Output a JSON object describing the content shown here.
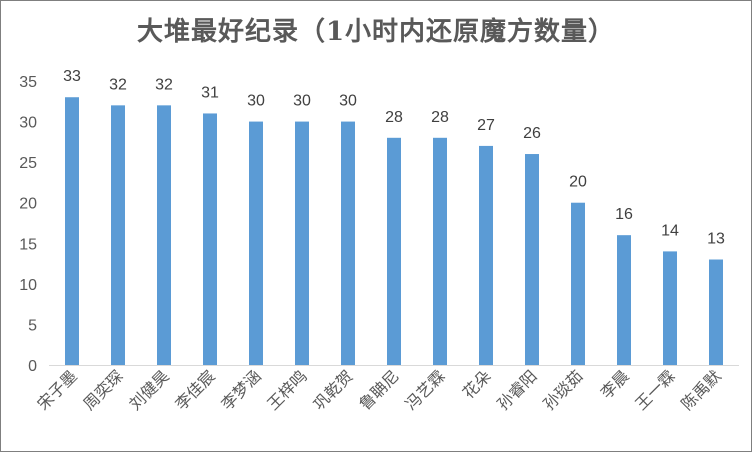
{
  "chart_data": {
    "type": "bar",
    "title": "大堆最好纪录（1小时内还原魔方数量）",
    "categories": [
      "宋子墨",
      "周奕琛",
      "刘健昊",
      "李佳宸",
      "李梦涵",
      "王梓鸣",
      "巩乾贺",
      "鲁聃尼",
      "冯艺霖",
      "花朵",
      "孙睿阳",
      "孙琰茹",
      "李晨",
      "王一霖",
      "陈禹默"
    ],
    "values": [
      33,
      32,
      32,
      31,
      30,
      30,
      30,
      28,
      28,
      27,
      26,
      20,
      16,
      14,
      13
    ],
    "ylim": [
      0,
      35
    ],
    "yticks": [
      0,
      5,
      10,
      15,
      20,
      25,
      30,
      35
    ],
    "grid": false,
    "data_labels": true,
    "bar_color": "#5b9bd5",
    "xlabel": "",
    "ylabel": ""
  }
}
